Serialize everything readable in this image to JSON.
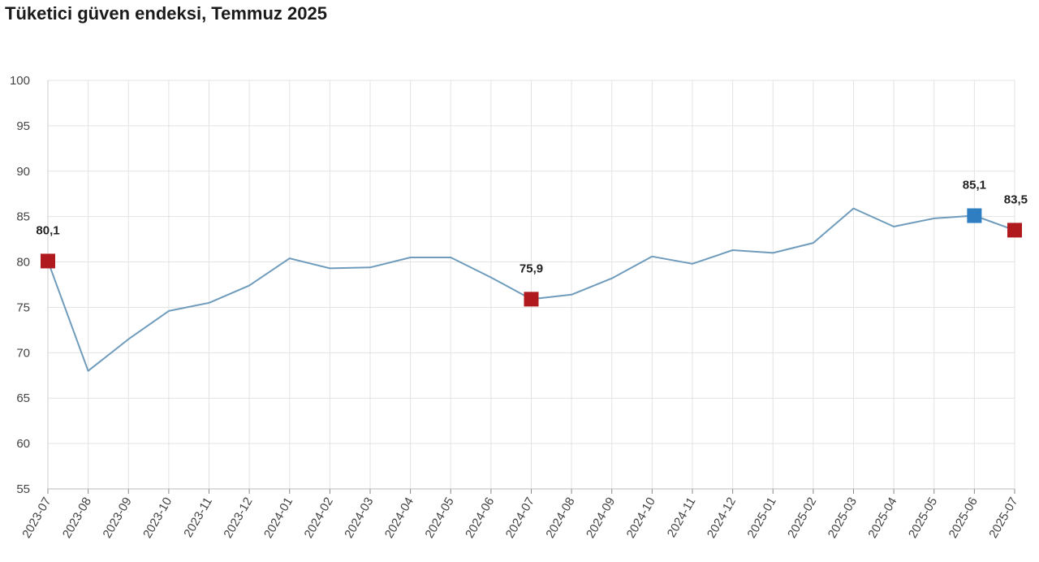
{
  "chart_data": {
    "type": "line",
    "title": "Tüketici güven endeksi, Temmuz 2025",
    "xlabel": "",
    "ylabel": "",
    "ylim": [
      55,
      100
    ],
    "yticks": [
      55,
      60,
      65,
      70,
      75,
      80,
      85,
      90,
      95,
      100
    ],
    "grid": true,
    "legend": "none",
    "x": [
      "2023-07",
      "2023-08",
      "2023-09",
      "2023-10",
      "2023-11",
      "2023-12",
      "2024-01",
      "2024-02",
      "2024-03",
      "2024-04",
      "2024-05",
      "2024-06",
      "2024-07",
      "2024-08",
      "2024-09",
      "2024-10",
      "2024-11",
      "2024-12",
      "2025-01",
      "2025-02",
      "2025-03",
      "2025-04",
      "2025-05",
      "2025-06",
      "2025-07"
    ],
    "series": [
      {
        "values": [
          80.1,
          68.0,
          71.5,
          74.6,
          75.5,
          77.4,
          80.4,
          79.3,
          79.4,
          80.5,
          80.5,
          78.3,
          75.9,
          76.4,
          78.2,
          80.6,
          79.8,
          81.3,
          81.0,
          82.1,
          85.9,
          83.9,
          84.8,
          85.1,
          83.5
        ],
        "color": "#6f9cbc"
      }
    ],
    "highlights": [
      {
        "index": 0,
        "label": "80,1",
        "color": "#b0191e"
      },
      {
        "index": 12,
        "label": "75,9",
        "color": "#b0191e"
      },
      {
        "index": 23,
        "label": "85,1",
        "color": "#2f7ec1"
      },
      {
        "index": 24,
        "label": "83,5",
        "color": "#b0191e"
      }
    ]
  }
}
